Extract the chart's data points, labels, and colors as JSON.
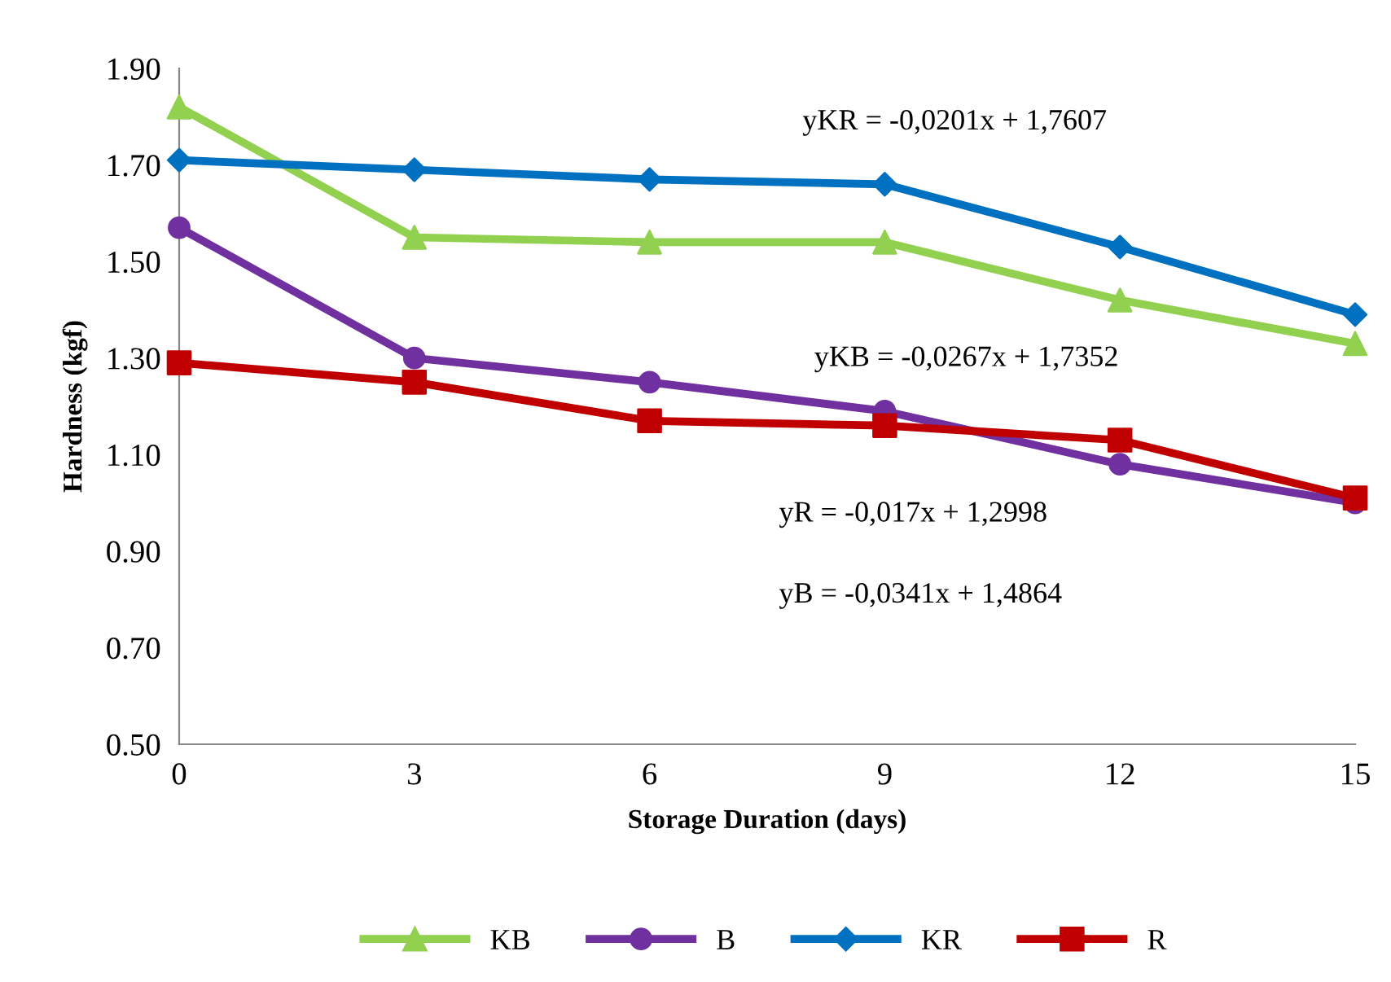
{
  "chart_data": {
    "type": "line",
    "xlabel": "Storage Duration (days)",
    "ylabel": "Hardness (kgf)",
    "x": [
      0,
      3,
      6,
      9,
      12,
      15
    ],
    "series": [
      {
        "name": "KB",
        "color": "#92d050",
        "marker": "triangle",
        "values": [
          1.82,
          1.55,
          1.54,
          1.54,
          1.42,
          1.33
        ]
      },
      {
        "name": "B",
        "color": "#7030a0",
        "marker": "circle",
        "values": [
          1.57,
          1.3,
          1.25,
          1.19,
          1.08,
          1.0
        ]
      },
      {
        "name": "KR",
        "color": "#0070c0",
        "marker": "diamond",
        "values": [
          1.71,
          1.69,
          1.67,
          1.66,
          1.53,
          1.39
        ]
      },
      {
        "name": "R",
        "color": "#c00000",
        "marker": "square",
        "values": [
          1.29,
          1.25,
          1.17,
          1.16,
          1.13,
          1.01
        ]
      }
    ],
    "xlim": [
      0,
      15
    ],
    "xticks": [
      0,
      3,
      6,
      9,
      12,
      15
    ],
    "ylim": [
      0.5,
      1.9
    ],
    "yticks": [
      {
        "value": 0.5,
        "label": "0.50"
      },
      {
        "value": 0.7,
        "label": "0.70"
      },
      {
        "value": 0.9,
        "label": "0.90"
      },
      {
        "value": 1.1,
        "label": "1.10"
      },
      {
        "value": 1.3,
        "label": "1.30"
      },
      {
        "value": 1.5,
        "label": "1.50"
      },
      {
        "value": 1.7,
        "label": "1.70"
      },
      {
        "value": 1.9,
        "label": "1.90"
      }
    ],
    "grid": false,
    "legend": "bottom",
    "line_style": "solid",
    "annotations": [
      "yKR = -0,0201x + 1,7607",
      "yKB = -0,0267x + 1,7352",
      "yR = -0,017x + 1,2998",
      "yB = -0,0341x + 1,4864"
    ]
  }
}
